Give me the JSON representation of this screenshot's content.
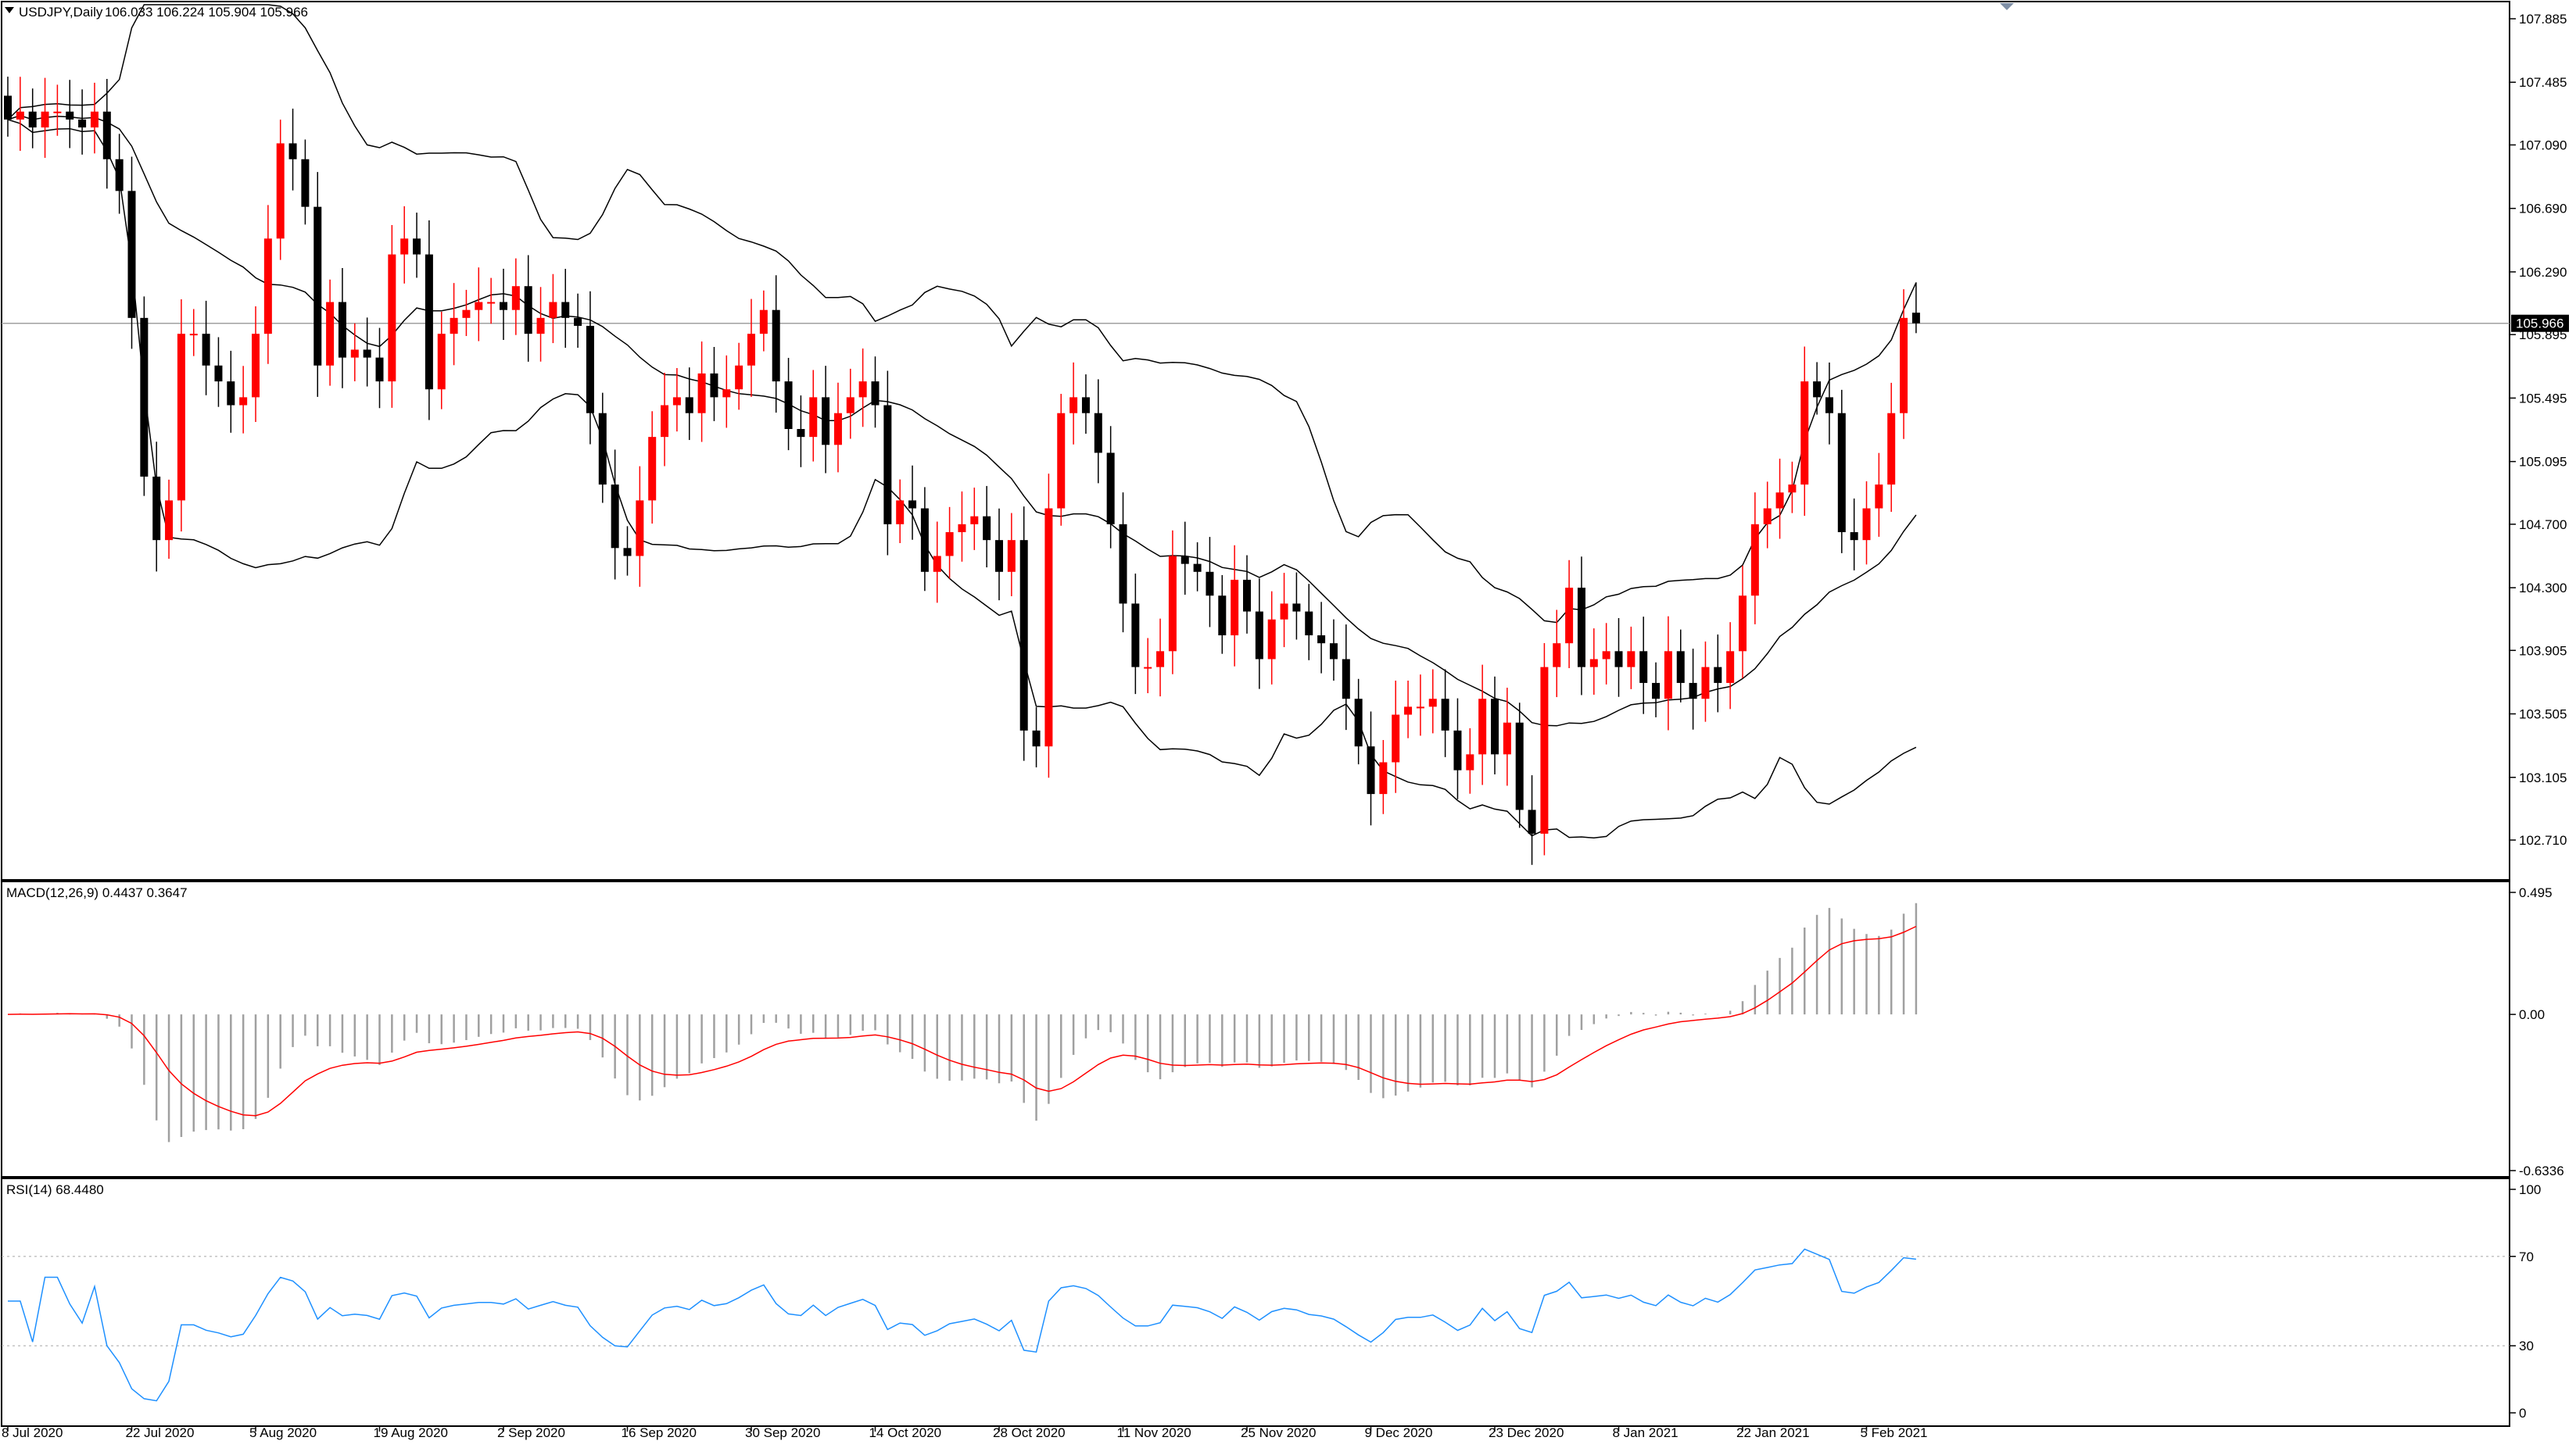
{
  "header": {
    "symbol": "USDJPY,Daily",
    "ohlc": "106.033 106.224 105.904 105.966"
  },
  "colors": {
    "bull": "#ff0000",
    "bear": "#000000",
    "bands": "#000000",
    "macd_hist": "#a0a0a0",
    "macd_signal": "#ff0000",
    "rsi": "#1e90ff",
    "axis": "#000000",
    "grid_price": "#a0a0a0"
  },
  "chart_data": {
    "type": "candlestick",
    "symbol": "USDJPY",
    "timeframe": "Daily",
    "last_price": "105.966",
    "price_ticks": [
      "107.885",
      "107.485",
      "107.090",
      "106.690",
      "106.290",
      "105.895",
      "105.495",
      "105.095",
      "104.700",
      "104.300",
      "103.905",
      "103.505",
      "103.105",
      "102.710"
    ],
    "price_range": [
      102.55,
      108.0
    ],
    "date_labels": [
      {
        "label": "8 Jul 2020",
        "index": 0
      },
      {
        "label": "22 Jul 2020",
        "index": 10
      },
      {
        "label": "5 Aug 2020",
        "index": 20
      },
      {
        "label": "19 Aug 2020",
        "index": 30
      },
      {
        "label": "2 Sep 2020",
        "index": 40
      },
      {
        "label": "16 Sep 2020",
        "index": 50
      },
      {
        "label": "30 Sep 2020",
        "index": 60
      },
      {
        "label": "14 Oct 2020",
        "index": 70
      },
      {
        "label": "28 Oct 2020",
        "index": 80
      },
      {
        "label": "11 Nov 2020",
        "index": 90
      },
      {
        "label": "25 Nov 2020",
        "index": 100
      },
      {
        "label": "9 Dec 2020",
        "index": 110
      },
      {
        "label": "23 Dec 2020",
        "index": 120
      },
      {
        "label": "8 Jan 2021",
        "index": 130
      },
      {
        "label": "22 Jan 2021",
        "index": 140
      },
      {
        "label": "5 Feb 2021",
        "index": 150
      }
    ],
    "closes": [
      107.25,
      107.3,
      107.2,
      107.3,
      107.3,
      107.25,
      107.2,
      107.3,
      107.0,
      106.8,
      106.0,
      105.0,
      104.6,
      104.85,
      105.9,
      105.9,
      105.7,
      105.6,
      105.45,
      105.5,
      105.9,
      106.5,
      107.1,
      107.0,
      106.7,
      105.7,
      106.1,
      105.75,
      105.8,
      105.75,
      105.6,
      106.4,
      106.5,
      106.4,
      105.55,
      105.9,
      106.0,
      106.05,
      106.1,
      106.1,
      106.05,
      106.2,
      105.9,
      106.0,
      106.1,
      106.0,
      105.95,
      105.4,
      104.95,
      104.55,
      104.5,
      104.85,
      105.25,
      105.45,
      105.5,
      105.4,
      105.65,
      105.5,
      105.55,
      105.7,
      105.9,
      106.05,
      105.6,
      105.3,
      105.25,
      105.5,
      105.2,
      105.4,
      105.5,
      105.6,
      105.45,
      104.7,
      104.85,
      104.8,
      104.4,
      104.5,
      104.65,
      104.7,
      104.75,
      104.6,
      104.4,
      104.6,
      103.4,
      103.3,
      104.8,
      105.4,
      105.5,
      105.4,
      105.15,
      104.7,
      104.2,
      103.8,
      103.8,
      103.9,
      104.5,
      104.45,
      104.4,
      104.25,
      104.0,
      104.35,
      104.15,
      103.85,
      104.1,
      104.2,
      104.15,
      104.0,
      103.95,
      103.85,
      103.6,
      103.3,
      103.0,
      103.2,
      103.5,
      103.55,
      103.55,
      103.6,
      103.4,
      103.15,
      103.25,
      103.6,
      103.25,
      103.45,
      102.9,
      102.75,
      103.8,
      103.95,
      104.3,
      103.8,
      103.85,
      103.9,
      103.8,
      103.9,
      103.7,
      103.6,
      103.9,
      103.7,
      103.6,
      103.8,
      103.7,
      103.9,
      104.25,
      104.7,
      104.8,
      104.9,
      104.95,
      105.6,
      105.5,
      105.4,
      104.65,
      104.6,
      104.8,
      104.95,
      105.4,
      106.0,
      105.97
    ],
    "macd": {
      "label": "MACD(12,26,9) 0.4437 0.3647",
      "ticks": [
        "0.495",
        "0.00",
        "-0.6336"
      ],
      "range": [
        -0.6336,
        0.495
      ]
    },
    "rsi": {
      "label": "RSI(14) 68.4480",
      "ticks": [
        "100",
        "70",
        "30",
        "0"
      ],
      "levels": [
        70,
        30
      ],
      "range": [
        0,
        100
      ]
    }
  }
}
